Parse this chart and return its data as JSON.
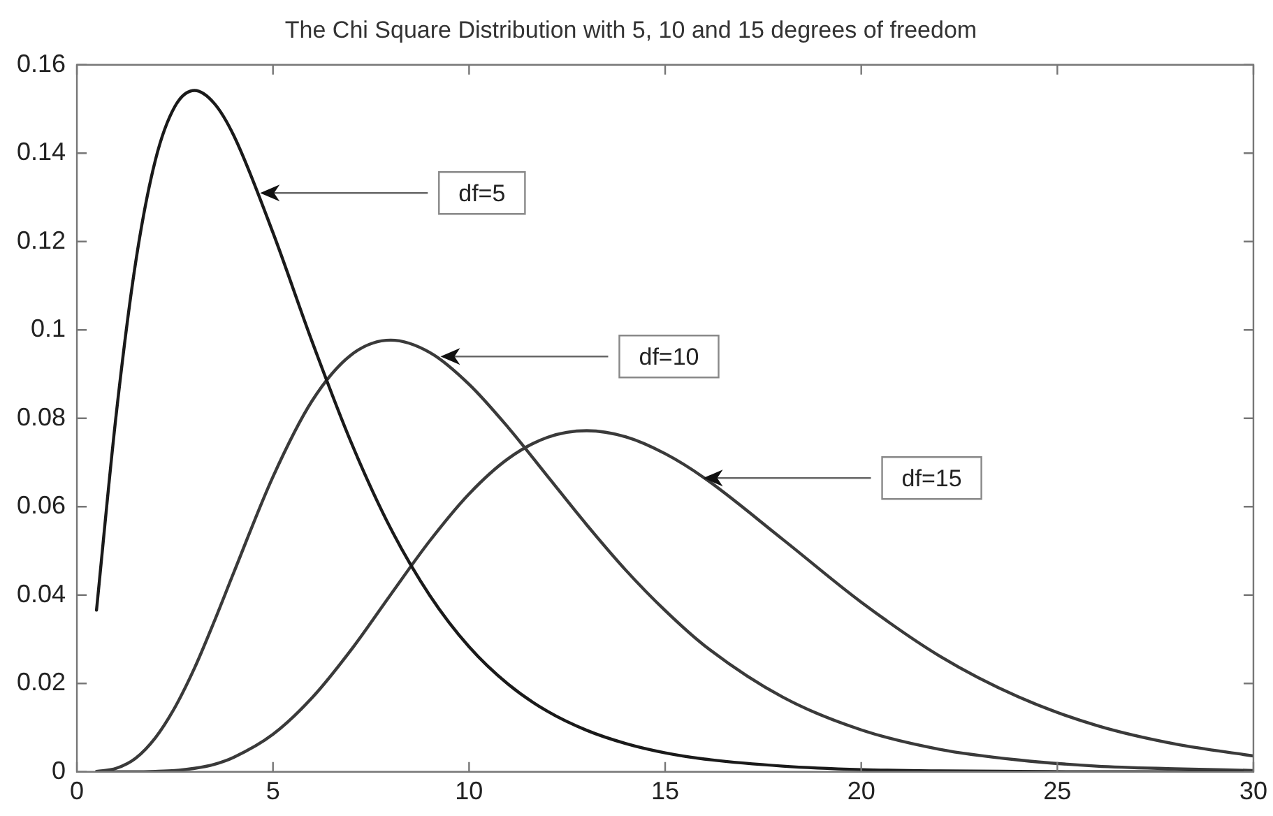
{
  "chart_data": {
    "type": "line",
    "title": "The Chi Square Distribution with 5, 10 and 15 degrees of freedom",
    "x": [
      0.5,
      1,
      1.5,
      2,
      2.5,
      3,
      3.5,
      4,
      5,
      6,
      7,
      8,
      9,
      10,
      11,
      12,
      13,
      14,
      15,
      16,
      18,
      20,
      22,
      24,
      26,
      28,
      30
    ],
    "series": [
      {
        "color": "#1a1a1a",
        "values": [
          0.0366,
          0.0807,
          0.1154,
          0.1384,
          0.1506,
          0.1542,
          0.1513,
          0.144,
          0.122,
          0.0973,
          0.0744,
          0.0551,
          0.0399,
          0.0283,
          0.0198,
          0.0137,
          0.0094,
          0.0064,
          0.0043,
          0.0029,
          0.0013,
          0.0005,
          0.0002,
          0.0001,
          0,
          0,
          0
        ]
      },
      {
        "color": "#3a3a3a",
        "values": [
          0.0001,
          0.0008,
          0.0031,
          0.0077,
          0.0146,
          0.0235,
          0.034,
          0.0451,
          0.0668,
          0.084,
          0.0944,
          0.0977,
          0.0949,
          0.0877,
          0.0779,
          0.0669,
          0.0559,
          0.0456,
          0.0365,
          0.0286,
          0.0169,
          0.0095,
          0.0051,
          0.0027,
          0.0013,
          0.0007,
          0.0003
        ]
      },
      {
        "color": "#3a3a3a",
        "values": [
          0,
          0,
          0,
          0.0001,
          0.0003,
          0.0008,
          0.0017,
          0.0033,
          0.0085,
          0.0168,
          0.0277,
          0.0401,
          0.0523,
          0.0629,
          0.0709,
          0.0757,
          0.0772,
          0.0758,
          0.072,
          0.0665,
          0.0526,
          0.0384,
          0.0262,
          0.017,
          0.0105,
          0.0063,
          0.0036
        ]
      }
    ],
    "xlim": [
      0,
      30
    ],
    "xticks": [
      0,
      5,
      10,
      15,
      20,
      25,
      30
    ],
    "ylim": [
      0,
      0.16
    ],
    "yticks": [
      0,
      0.02,
      0.04,
      0.06,
      0.08,
      0.1,
      0.12,
      0.14,
      0.16
    ],
    "grid": false,
    "legend": false,
    "marker": "none",
    "line_style": "solid",
    "annotations": [
      {
        "text": "df=5",
        "x": 4.6,
        "y": 0.131
      },
      {
        "text": "df=10",
        "x": 9.2,
        "y": 0.094
      },
      {
        "text": "df=15",
        "x": 15.9,
        "y": 0.0665
      }
    ]
  }
}
